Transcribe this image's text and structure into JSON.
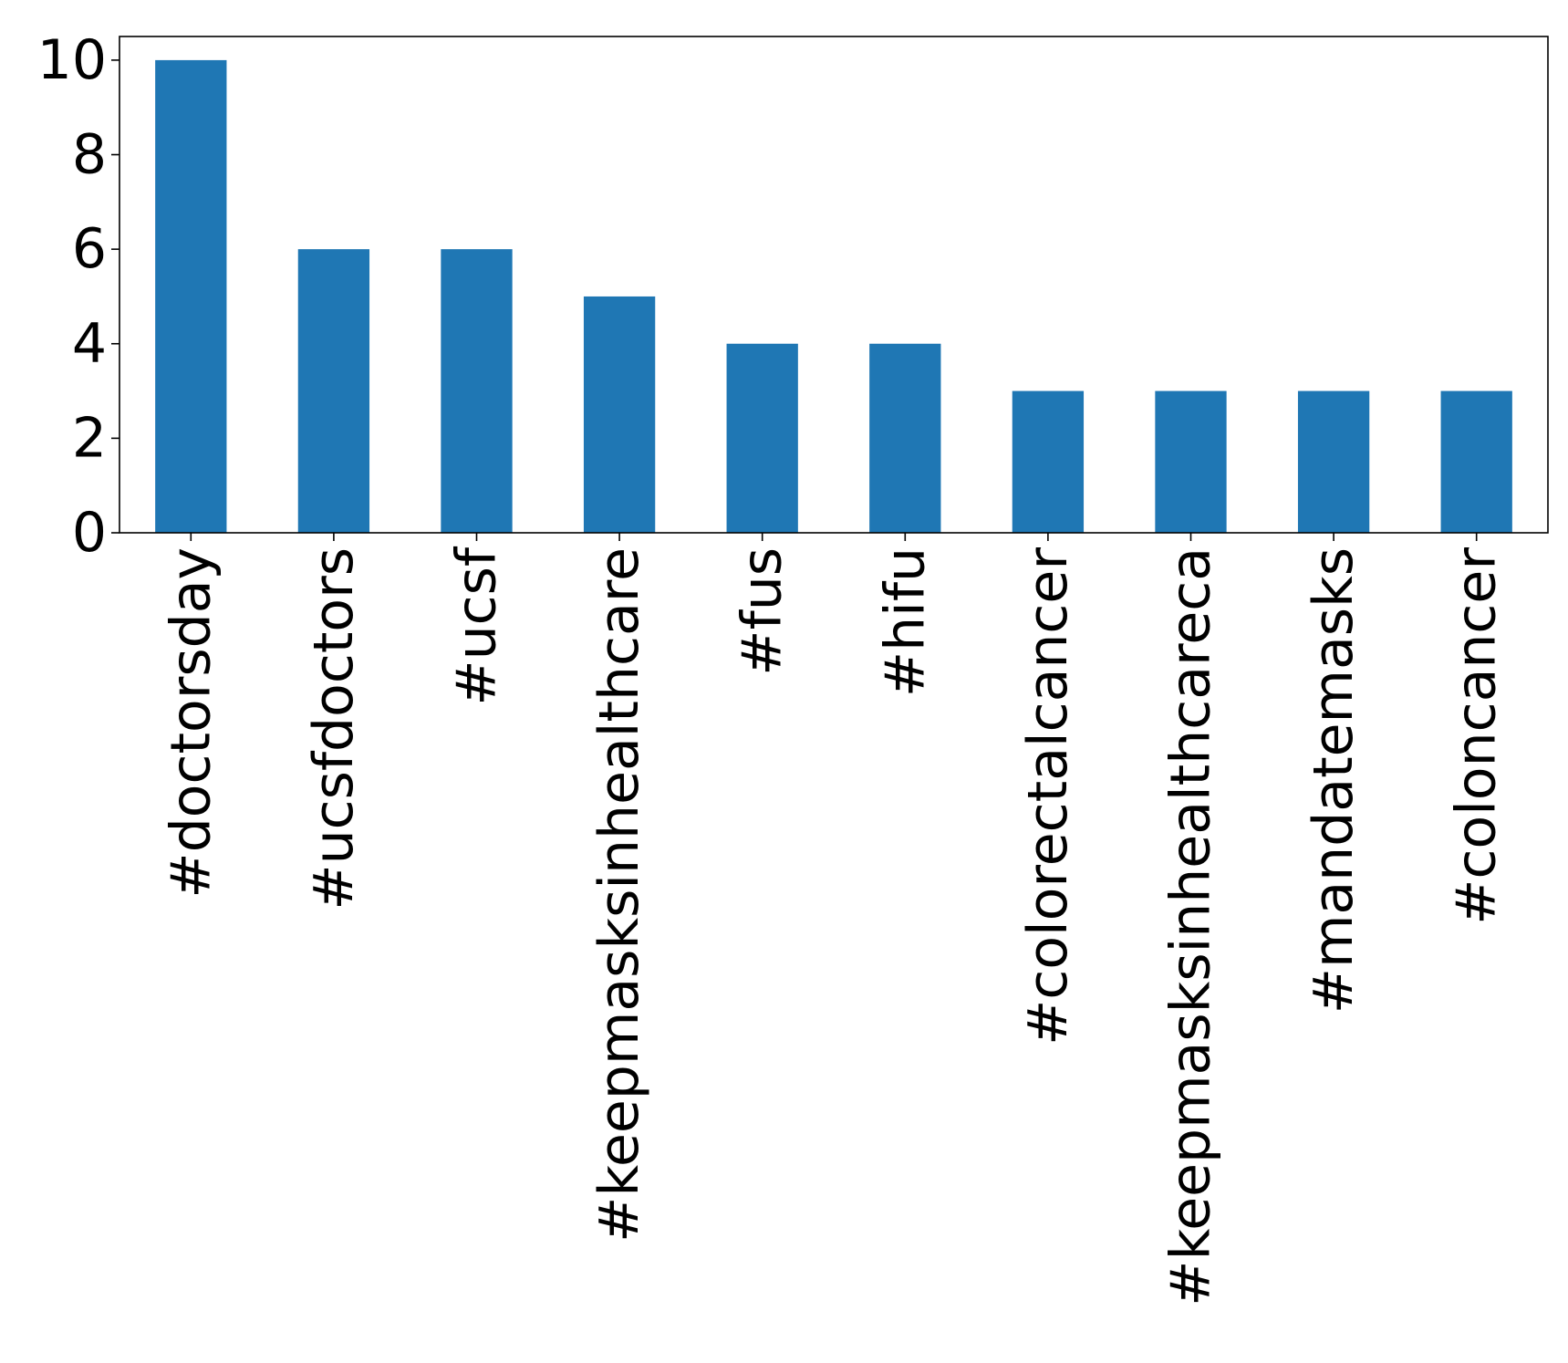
{
  "chart_data": {
    "type": "bar",
    "title": "",
    "xlabel": "",
    "ylabel": "",
    "categories": [
      "#doctorsday",
      "#ucsfdoctors",
      "#ucsf",
      "#keepmasksinhealthcare",
      "#fus",
      "#hifu",
      "#colorectalcancer",
      "#keepmasksinhealthcareca",
      "#mandatemasks",
      "#coloncancer"
    ],
    "values": [
      10,
      6,
      6,
      5,
      4,
      4,
      3,
      3,
      3,
      3
    ],
    "ylim": [
      0,
      10.5
    ],
    "yticks": [
      0,
      2,
      4,
      6,
      8,
      10
    ],
    "bar_color": "#1f77b4",
    "grid": false,
    "legend": "none"
  }
}
